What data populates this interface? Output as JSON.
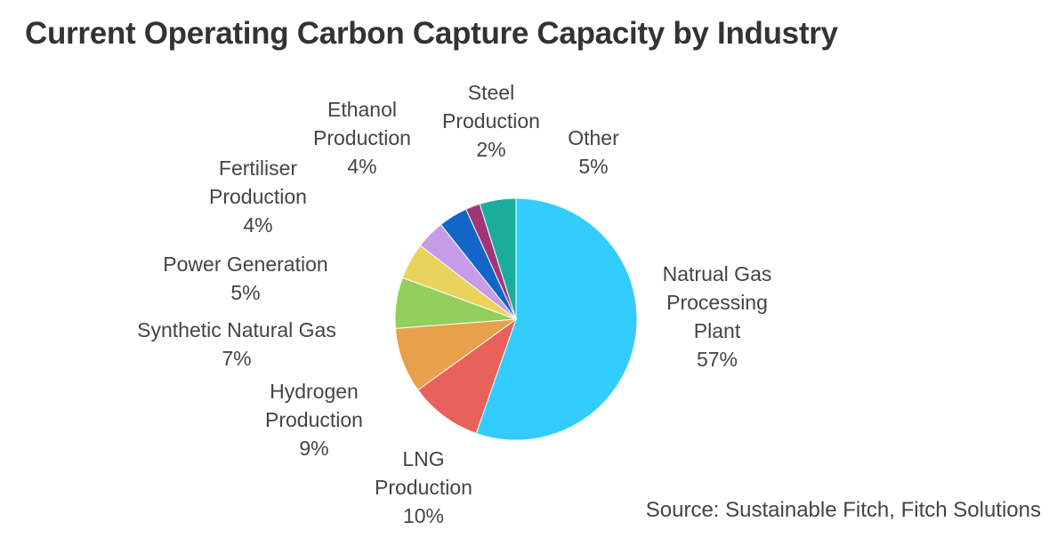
{
  "chart_data": {
    "type": "pie",
    "title": "Current Operating Carbon Capture Capacity by Industry",
    "slices": [
      {
        "label": [
          "Natrual Gas",
          "Processing",
          "Plant"
        ],
        "value": 57,
        "display": "57%",
        "color": "#33ccff"
      },
      {
        "label": [
          "LNG",
          "Production"
        ],
        "value": 10,
        "display": "10%",
        "color": "#e8615a"
      },
      {
        "label": [
          "Hydrogen",
          "Production"
        ],
        "value": 9,
        "display": "9%",
        "color": "#e8a04a"
      },
      {
        "label": [
          "Synthetic Natural Gas"
        ],
        "value": 7,
        "display": "7%",
        "color": "#92cf5c"
      },
      {
        "label": [
          "Power Generation"
        ],
        "value": 5,
        "display": "5%",
        "color": "#ead35a"
      },
      {
        "label": [
          "Fertiliser",
          "Production"
        ],
        "value": 4,
        "display": "4%",
        "color": "#c79be8"
      },
      {
        "label": [
          "Ethanol",
          "Production"
        ],
        "value": 4,
        "display": "4%",
        "color": "#1266c8"
      },
      {
        "label": [
          "Steel",
          "Production"
        ],
        "value": 2,
        "display": "2%",
        "color": "#a0357a"
      },
      {
        "label": [
          "Other"
        ],
        "value": 5,
        "display": "5%",
        "color": "#1aad9c"
      }
    ],
    "source": "Source: Sustainable Fitch, Fitch Solutions"
  }
}
